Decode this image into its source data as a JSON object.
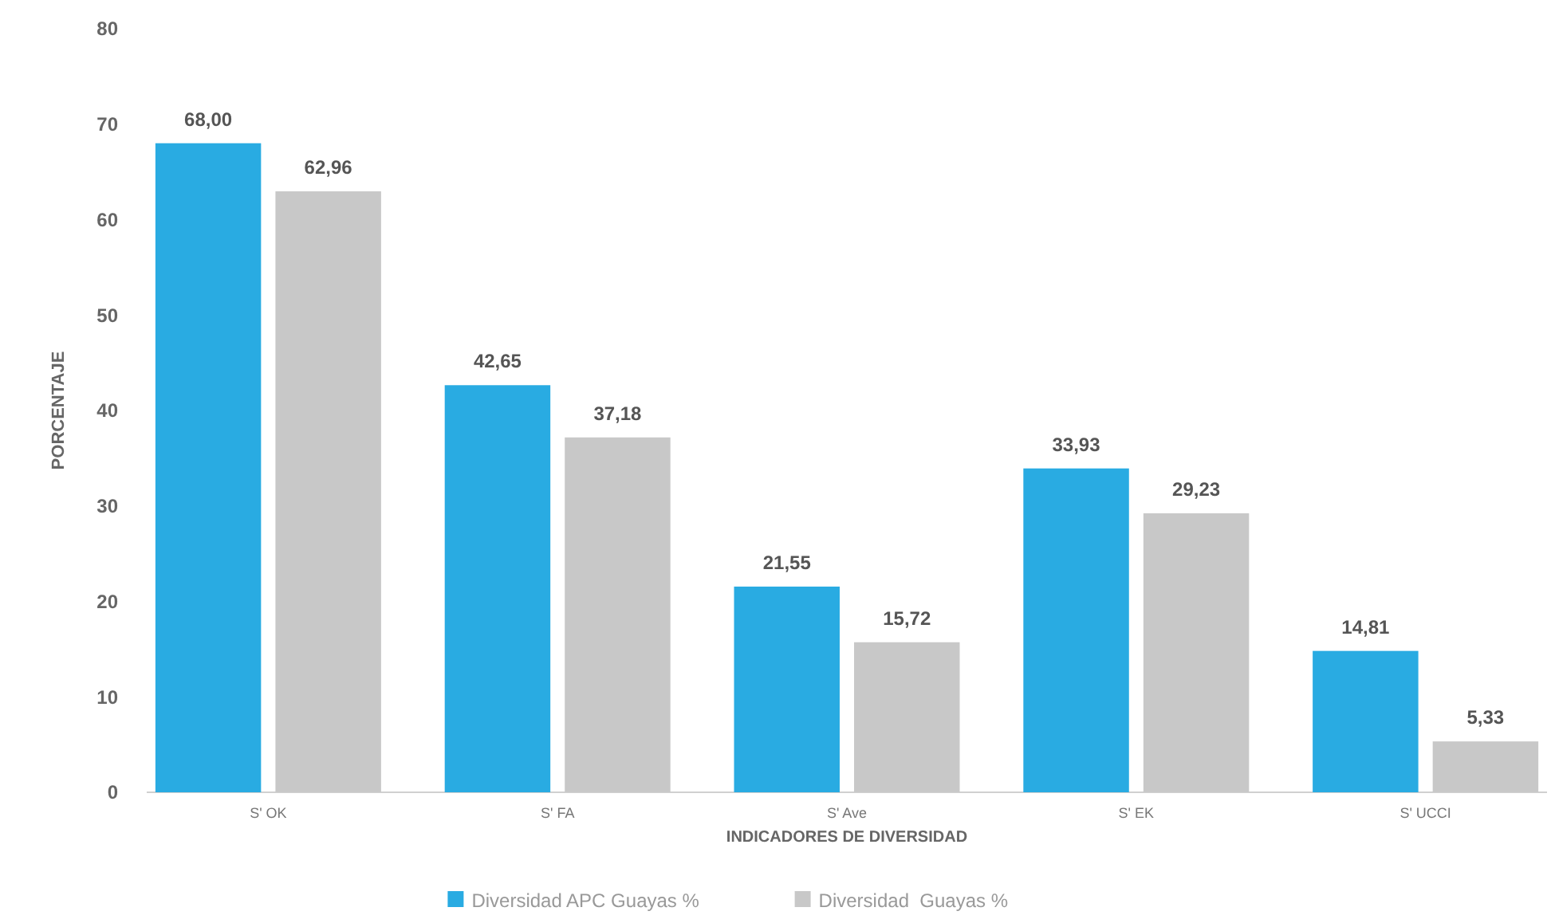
{
  "chart_data": {
    "type": "bar",
    "xlabel": "INDICADORES DE DIVERSIDAD",
    "ylabel": "PORCENTAJE",
    "categories": [
      "S' OK",
      "S' FA",
      "S' Ave",
      "S' EK",
      "S' UCCI"
    ],
    "series": [
      {
        "name": "Diversidad APC Guayas %",
        "color": "#29abe2",
        "values": [
          68.0,
          42.65,
          21.55,
          33.93,
          14.81
        ],
        "value_labels": [
          "68,00",
          "42,65",
          "21,55",
          "33,93",
          "14,81"
        ]
      },
      {
        "name": "Diversidad  Guayas %",
        "color": "#c8c8c8",
        "values": [
          62.96,
          37.18,
          15.72,
          29.23,
          5.33
        ],
        "value_labels": [
          "62,96",
          "37,18",
          "15,72",
          "29,23",
          "5,33"
        ]
      }
    ],
    "ylim": [
      0,
      80
    ],
    "yticks": [
      0,
      10,
      20,
      30,
      40,
      50,
      60,
      70,
      80
    ],
    "grid": false,
    "legend": "bottom"
  }
}
